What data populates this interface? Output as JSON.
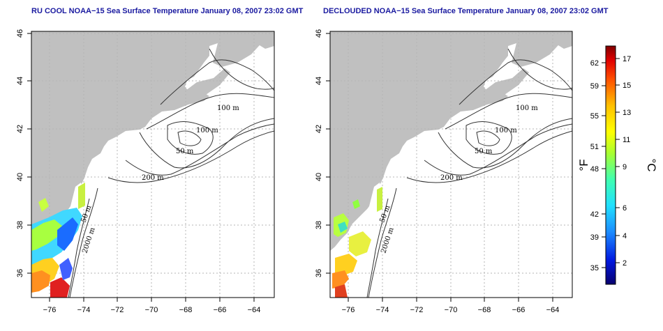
{
  "maps": [
    {
      "title": "RU COOL NOAA−15 Sea Surface Temperature January 08, 2007 23:02 GMT"
    },
    {
      "title": "DECLOUDED NOAA−15 Sea Surface Temperature January 08, 2007 23:02 GMT"
    }
  ],
  "axes": {
    "lat_ticks": [
      "46",
      "44",
      "42",
      "40",
      "38",
      "36"
    ],
    "lon_ticks": [
      "−76",
      "−74",
      "−72",
      "−70",
      "−68",
      "−66",
      "−64"
    ]
  },
  "contour_labels": {
    "depth_100a": "100 m",
    "depth_100b": "100 m",
    "depth_50a": "50 m",
    "depth_200": "200 m",
    "depth_50b": "50 m",
    "depth_2000": "2000 m"
  },
  "colorbar": {
    "fahrenheit_unit": "°F",
    "celsius_unit": "°C",
    "fahrenheit_ticks": [
      "62",
      "59",
      "55",
      "51",
      "48",
      "42",
      "39",
      "35"
    ],
    "celsius_ticks": [
      "17",
      "15",
      "13",
      "11",
      "9",
      "6",
      "4",
      "2"
    ]
  },
  "colors": {
    "land": "#c0c0c0",
    "title": "#1a1aa0",
    "grid": "#b5b5b5"
  }
}
